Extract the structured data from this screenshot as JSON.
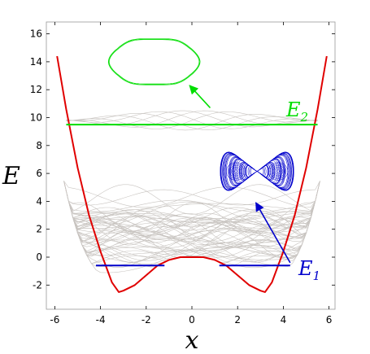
{
  "chart_data": {
    "type": "line",
    "title": "",
    "xlabel": "x",
    "ylabel": "E",
    "xlim": [
      -6.2,
      6.2
    ],
    "ylim": [
      -3.8,
      16.5
    ],
    "xticks": [
      -6,
      -4,
      -2,
      0,
      2,
      4,
      6
    ],
    "yticks": [
      -2,
      0,
      2,
      4,
      6,
      8,
      10,
      12,
      14,
      16
    ],
    "xtick_labels": [
      "-6",
      "-4",
      "-2",
      "0",
      "2",
      "4",
      "6"
    ],
    "ytick_labels": [
      "-2",
      "0",
      "2",
      "4",
      "6",
      "8",
      "10",
      "12",
      "14",
      "16"
    ],
    "grid": false,
    "colors": {
      "potential": "#e00000",
      "e1": "#0000cc",
      "e2": "#00dd00",
      "trajectories": "#c8c4c0"
    },
    "potential_curve": {
      "x": [
        -5.9,
        -5.5,
        -5.0,
        -4.5,
        -4.0,
        -3.5,
        -3.2,
        -3.0,
        -2.5,
        -2.0,
        -1.5,
        -1.0,
        -0.5,
        0.0,
        0.5,
        1.0,
        1.5,
        2.0,
        2.5,
        3.0,
        3.2,
        3.5,
        4.0,
        4.5,
        5.0,
        5.5,
        5.9
      ],
      "y": [
        14.4,
        10.6,
        6.4,
        3.0,
        0.4,
        -1.8,
        -2.5,
        -2.4,
        -2.0,
        -1.3,
        -0.6,
        -0.2,
        0.0,
        0.0,
        0.0,
        -0.2,
        -0.6,
        -1.3,
        -2.0,
        -2.4,
        -2.5,
        -1.8,
        0.4,
        3.0,
        6.4,
        10.6,
        14.4
      ]
    },
    "levels": [
      {
        "name": "E",
        "subscript": "1",
        "energy": -0.6,
        "segments": [
          [
            -4.2,
            -1.2
          ],
          [
            1.2,
            4.3
          ]
        ]
      },
      {
        "name": "E",
        "subscript": "2",
        "energy": 9.5,
        "segments": [
          [
            -5.5,
            5.5
          ]
        ]
      }
    ],
    "inset_e1": {
      "x": [
        1.1,
        4.6
      ],
      "y": [
        4.4,
        7.9
      ],
      "arrow_from": [
        4.3,
        -0.4
      ],
      "arrow_to": [
        2.8,
        3.9
      ]
    },
    "inset_e2": {
      "x": [
        -3.6,
        0.3
      ],
      "y": [
        12.0,
        16.0
      ],
      "arrow_from": [
        0.8,
        10.7
      ],
      "arrow_to": [
        -0.1,
        12.3
      ]
    }
  }
}
